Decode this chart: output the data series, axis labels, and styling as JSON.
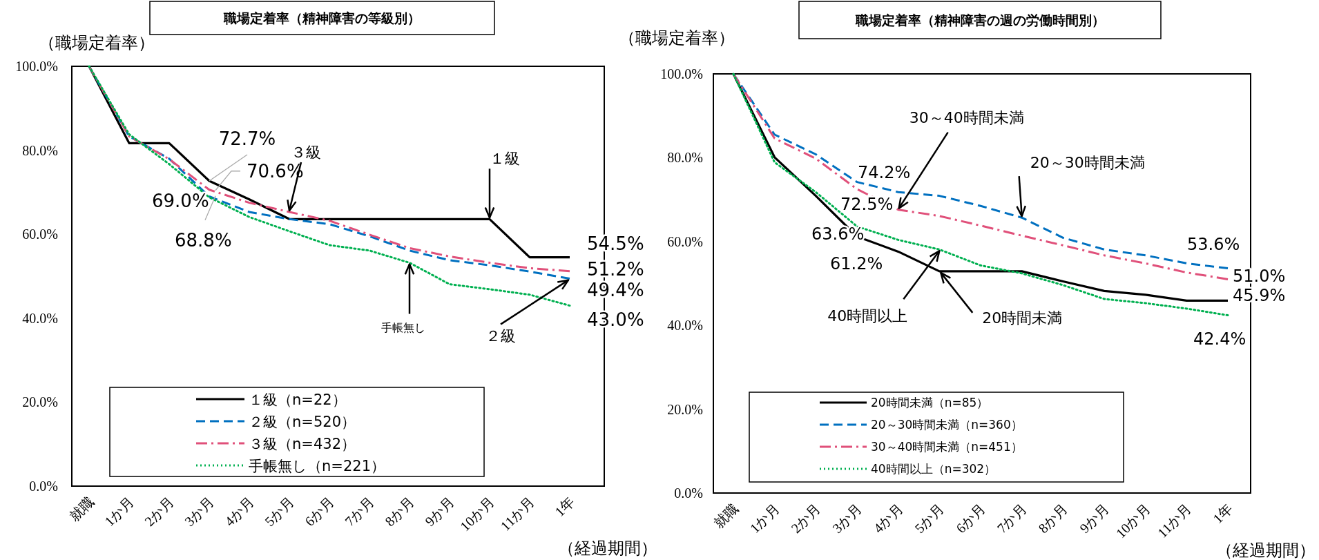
{
  "chart_data": [
    {
      "type": "line",
      "title": "職場定着率（精神障害の等級別）",
      "ylabel": "（職場定着率）",
      "xlabel": "（経過期間）",
      "categories": [
        "就職",
        "1か月",
        "2か月",
        "3か月",
        "4か月",
        "5か月",
        "6か月",
        "7か月",
        "8か月",
        "9か月",
        "10か月",
        "11か月",
        "1年"
      ],
      "ylim": [
        0,
        100
      ],
      "yticks": [
        {
          "value": 0,
          "label": "0.0%"
        },
        {
          "value": 20,
          "label": "20.0%"
        },
        {
          "value": 40,
          "label": "40.0%"
        },
        {
          "value": 60,
          "label": "60.0%"
        },
        {
          "value": 80,
          "label": "80.0%"
        },
        {
          "value": 100,
          "label": "100.0%"
        }
      ],
      "grid": false,
      "legend": "bottom left",
      "series": [
        {
          "name": "１級（n=22）",
          "color": "#000000",
          "line_style": "solid",
          "values": [
            100,
            81.7,
            81.7,
            72.7,
            68.3,
            63.6,
            63.6,
            63.6,
            63.6,
            63.6,
            63.6,
            54.5,
            54.5
          ]
        },
        {
          "name": "２級（n=520）",
          "color": "#0070c0",
          "line_style": "dashed",
          "values": [
            100,
            83.3,
            78,
            69.0,
            65.3,
            63.6,
            62.4,
            59.5,
            56.1,
            53.8,
            52.6,
            51.1,
            49.4
          ]
        },
        {
          "name": "３級（n=432）",
          "color": "#e0507a",
          "line_style": "dashdot",
          "values": [
            100,
            83.3,
            77.9,
            70.6,
            67.5,
            65.3,
            63.2,
            59.9,
            56.7,
            54.7,
            53.2,
            51.9,
            51.2
          ]
        },
        {
          "name": "手帳無し（n=221）",
          "color": "#00b050",
          "line_style": "dotted",
          "values": [
            100,
            83.8,
            76.7,
            68.8,
            64.1,
            60.7,
            57.4,
            56.1,
            53.2,
            48.1,
            46.9,
            45.6,
            43.0
          ]
        }
      ],
      "annotations": [
        {
          "text": "72.7%",
          "x": "3か月",
          "y": 72.7
        },
        {
          "text": "70.6%",
          "x": "3か月",
          "y": 70.6
        },
        {
          "text": "69.0%",
          "x": "3か月",
          "y": 69.0
        },
        {
          "text": "68.8%",
          "x": "3か月",
          "y": 68.8
        },
        {
          "text": "54.5%",
          "x": "1年",
          "y": 54.5
        },
        {
          "text": "51.2%",
          "x": "1年",
          "y": 51.2
        },
        {
          "text": "49.4%",
          "x": "1年",
          "y": 49.4
        },
        {
          "text": "43.0%",
          "x": "1年",
          "y": 43.0
        },
        {
          "text": "３級",
          "x": "5か月",
          "y": 65.3
        },
        {
          "text": "１級",
          "x": "10か月",
          "y": 63.6
        },
        {
          "text": "手帳無し",
          "x": "8か月",
          "y": 53.2
        },
        {
          "text": "２級",
          "x": "1年",
          "y": 49.4
        }
      ]
    },
    {
      "type": "line",
      "title": "職場定着率（精神障害の週の労働時間別）",
      "ylabel": "（職場定着率）",
      "xlabel": "（経過期間）",
      "categories": [
        "就職",
        "1か月",
        "2か月",
        "3か月",
        "4か月",
        "5か月",
        "6か月",
        "7か月",
        "8か月",
        "9か月",
        "10か月",
        "11か月",
        "1年"
      ],
      "ylim": [
        0,
        100
      ],
      "yticks": [
        {
          "value": 0,
          "label": "0.0%"
        },
        {
          "value": 20,
          "label": "20.0%"
        },
        {
          "value": 40,
          "label": "40.0%"
        },
        {
          "value": 60,
          "label": "60.0%"
        },
        {
          "value": 80,
          "label": "80.0%"
        },
        {
          "value": 100,
          "label": "100.0%"
        }
      ],
      "grid": false,
      "legend": "bottom left",
      "series": [
        {
          "name": "20時間未満（n=85）",
          "color": "#000000",
          "line_style": "solid",
          "values": [
            100,
            80.1,
            70.9,
            61.2,
            57.6,
            52.9,
            52.9,
            52.9,
            50.5,
            48.2,
            47.3,
            45.9,
            45.9
          ]
        },
        {
          "name": "20～30時間未満（n=360）",
          "color": "#0070c0",
          "line_style": "dashed",
          "values": [
            100,
            85.5,
            80.8,
            74.2,
            71.8,
            70.9,
            68.5,
            65.7,
            60.9,
            58.1,
            56.7,
            54.8,
            53.6
          ]
        },
        {
          "name": "30～40時間未満（n=451）",
          "color": "#e0507a",
          "line_style": "dashdot",
          "values": [
            100,
            84.6,
            79.8,
            72.5,
            67.6,
            66.1,
            63.8,
            61.4,
            59.1,
            56.7,
            54.8,
            52.6,
            51.0
          ]
        },
        {
          "name": "40時間以上（n=302）",
          "color": "#00b050",
          "line_style": "dotted",
          "values": [
            100,
            78.9,
            71.8,
            63.6,
            60.4,
            58.1,
            54.3,
            52.4,
            49.6,
            46.3,
            45.3,
            44.0,
            42.4
          ]
        }
      ],
      "annotations": [
        {
          "text": "74.2%",
          "x": "3か月",
          "y": 74.2
        },
        {
          "text": "72.5%",
          "x": "3か月",
          "y": 72.5
        },
        {
          "text": "63.6%",
          "x": "3か月",
          "y": 63.6
        },
        {
          "text": "61.2%",
          "x": "3か月",
          "y": 61.2
        },
        {
          "text": "53.6%",
          "x": "1年",
          "y": 53.6
        },
        {
          "text": "51.0%",
          "x": "1年",
          "y": 51.0
        },
        {
          "text": "45.9%",
          "x": "1年",
          "y": 45.9
        },
        {
          "text": "42.4%",
          "x": "1年",
          "y": 42.4
        },
        {
          "text": "30～40時間未満",
          "x": "4か月",
          "y": 67.6
        },
        {
          "text": "20～30時間未満",
          "x": "7か月",
          "y": 65.7
        },
        {
          "text": "40時間以上",
          "x": "5か月",
          "y": 58.1
        },
        {
          "text": "20時間未満",
          "x": "5か月",
          "y": 52.9
        }
      ]
    }
  ]
}
